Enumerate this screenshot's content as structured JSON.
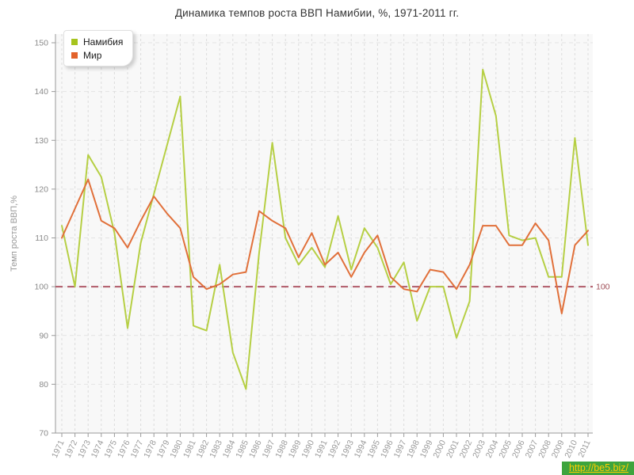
{
  "title": "Динамика темпов роста ВВП Намибии, %, 1971-2011 гг.",
  "y_axis_title": "Темп роста ВВП,%",
  "watermark": "http://be5.biz/",
  "legend": [
    {
      "label": "Намибия",
      "color": "#a6c41e"
    },
    {
      "label": "Мир",
      "color": "#e2622b"
    }
  ],
  "reference_line": {
    "value": 100,
    "label": "100",
    "color": "#b05a68",
    "label_color": "#a04f58"
  },
  "chart_data": {
    "type": "line",
    "title": "Динамика темпов роста ВВП Намибии, %, 1971-2011 гг.",
    "xlabel": "",
    "ylabel": "Темп роста ВВП,%",
    "ylim": [
      70,
      150
    ],
    "y_ticks": [
      70,
      80,
      90,
      100,
      110,
      120,
      130,
      140,
      150
    ],
    "grid": true,
    "legend_position": "top-left",
    "reference_y": 100,
    "x": [
      1971,
      1972,
      1973,
      1974,
      1975,
      1976,
      1977,
      1978,
      1979,
      1980,
      1981,
      1982,
      1983,
      1984,
      1985,
      1986,
      1987,
      1988,
      1989,
      1990,
      1991,
      1992,
      1993,
      1994,
      1995,
      1996,
      1997,
      1998,
      1999,
      2000,
      2001,
      2002,
      2003,
      2004,
      2005,
      2006,
      2007,
      2008,
      2009,
      2010,
      2011
    ],
    "series": [
      {
        "name": "Намибия",
        "color": "#b6cf44",
        "values": [
          112.5,
          100,
          127,
          122.5,
          111,
          91.5,
          109,
          119,
          129,
          139,
          92,
          91,
          104.5,
          86.5,
          79,
          107,
          129.5,
          110,
          104.5,
          108,
          104,
          114.5,
          103.5,
          112,
          108,
          100.5,
          105,
          93,
          100,
          100,
          89.5,
          97,
          144.5,
          135,
          110.5,
          109.5,
          110,
          102,
          102,
          130.5,
          108.5
        ]
      },
      {
        "name": "Мир",
        "color": "#e1703a",
        "values": [
          110,
          116,
          122,
          113.5,
          112,
          108,
          113.5,
          118.5,
          115,
          112,
          102,
          99.5,
          100.5,
          102.5,
          103,
          115.5,
          113.5,
          112,
          106,
          111,
          104.5,
          107,
          102,
          107,
          110.5,
          102,
          99.5,
          99,
          103.5,
          103,
          99.5,
          104.5,
          112.5,
          112.5,
          108.5,
          108.5,
          113,
          109.5,
          94.5,
          108.5,
          111.5
        ]
      }
    ]
  }
}
